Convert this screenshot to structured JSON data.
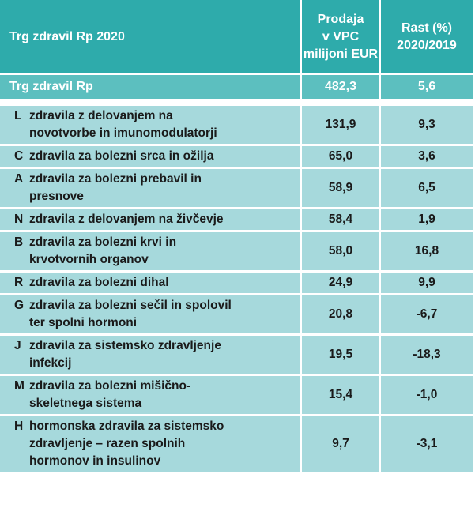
{
  "header": {
    "title": "Trg zdravil Rp 2020",
    "sales_col": [
      "Prodaja",
      "v VPC",
      "milijoni EUR"
    ],
    "growth_col": [
      "Rast (%)",
      "2020/2019"
    ]
  },
  "total": {
    "label": "Trg zdravil Rp",
    "sales": "482,3",
    "growth": "5,6"
  },
  "rows": [
    {
      "code": "L",
      "label_lines": [
        "zdravila z delovanjem na",
        "novotvorbe in imunomodulatorji"
      ],
      "sales": "131,9",
      "growth": "9,3"
    },
    {
      "code": "C",
      "label_lines": [
        "zdravila za bolezni srca in ožilja"
      ],
      "sales": "65,0",
      "growth": "3,6"
    },
    {
      "code": "A",
      "label_lines": [
        "zdravila za bolezni prebavil in",
        "presnove"
      ],
      "sales": "58,9",
      "growth": "6,5"
    },
    {
      "code": "N",
      "label_lines": [
        "zdravila z delovanjem na živčevje"
      ],
      "sales": "58,4",
      "growth": "1,9"
    },
    {
      "code": "B",
      "label_lines": [
        "zdravila za bolezni krvi in",
        "krvotvornih organov"
      ],
      "sales": "58,0",
      "growth": "16,8"
    },
    {
      "code": "R",
      "label_lines": [
        "zdravila za bolezni dihal"
      ],
      "sales": "24,9",
      "growth": "9,9"
    },
    {
      "code": "G",
      "label_lines": [
        "zdravila za bolezni sečil in spolovil",
        "ter spolni hormoni"
      ],
      "sales": "20,8",
      "growth": "-6,7"
    },
    {
      "code": "J",
      "label_lines": [
        "zdravila za sistemsko zdravljenje",
        "infekcij"
      ],
      "sales": "19,5",
      "growth": "-18,3"
    },
    {
      "code": "M",
      "label_lines": [
        "zdravila za bolezni mišično-",
        "skeletnega sistema"
      ],
      "sales": "15,4",
      "growth": "-1,0"
    },
    {
      "code": "H",
      "label_lines": [
        "hormonska zdravila za sistemsko",
        "zdravljenje – razen spolnih",
        "hormonov in insulinov"
      ],
      "sales": "9,7",
      "growth": "-3,1"
    }
  ]
}
